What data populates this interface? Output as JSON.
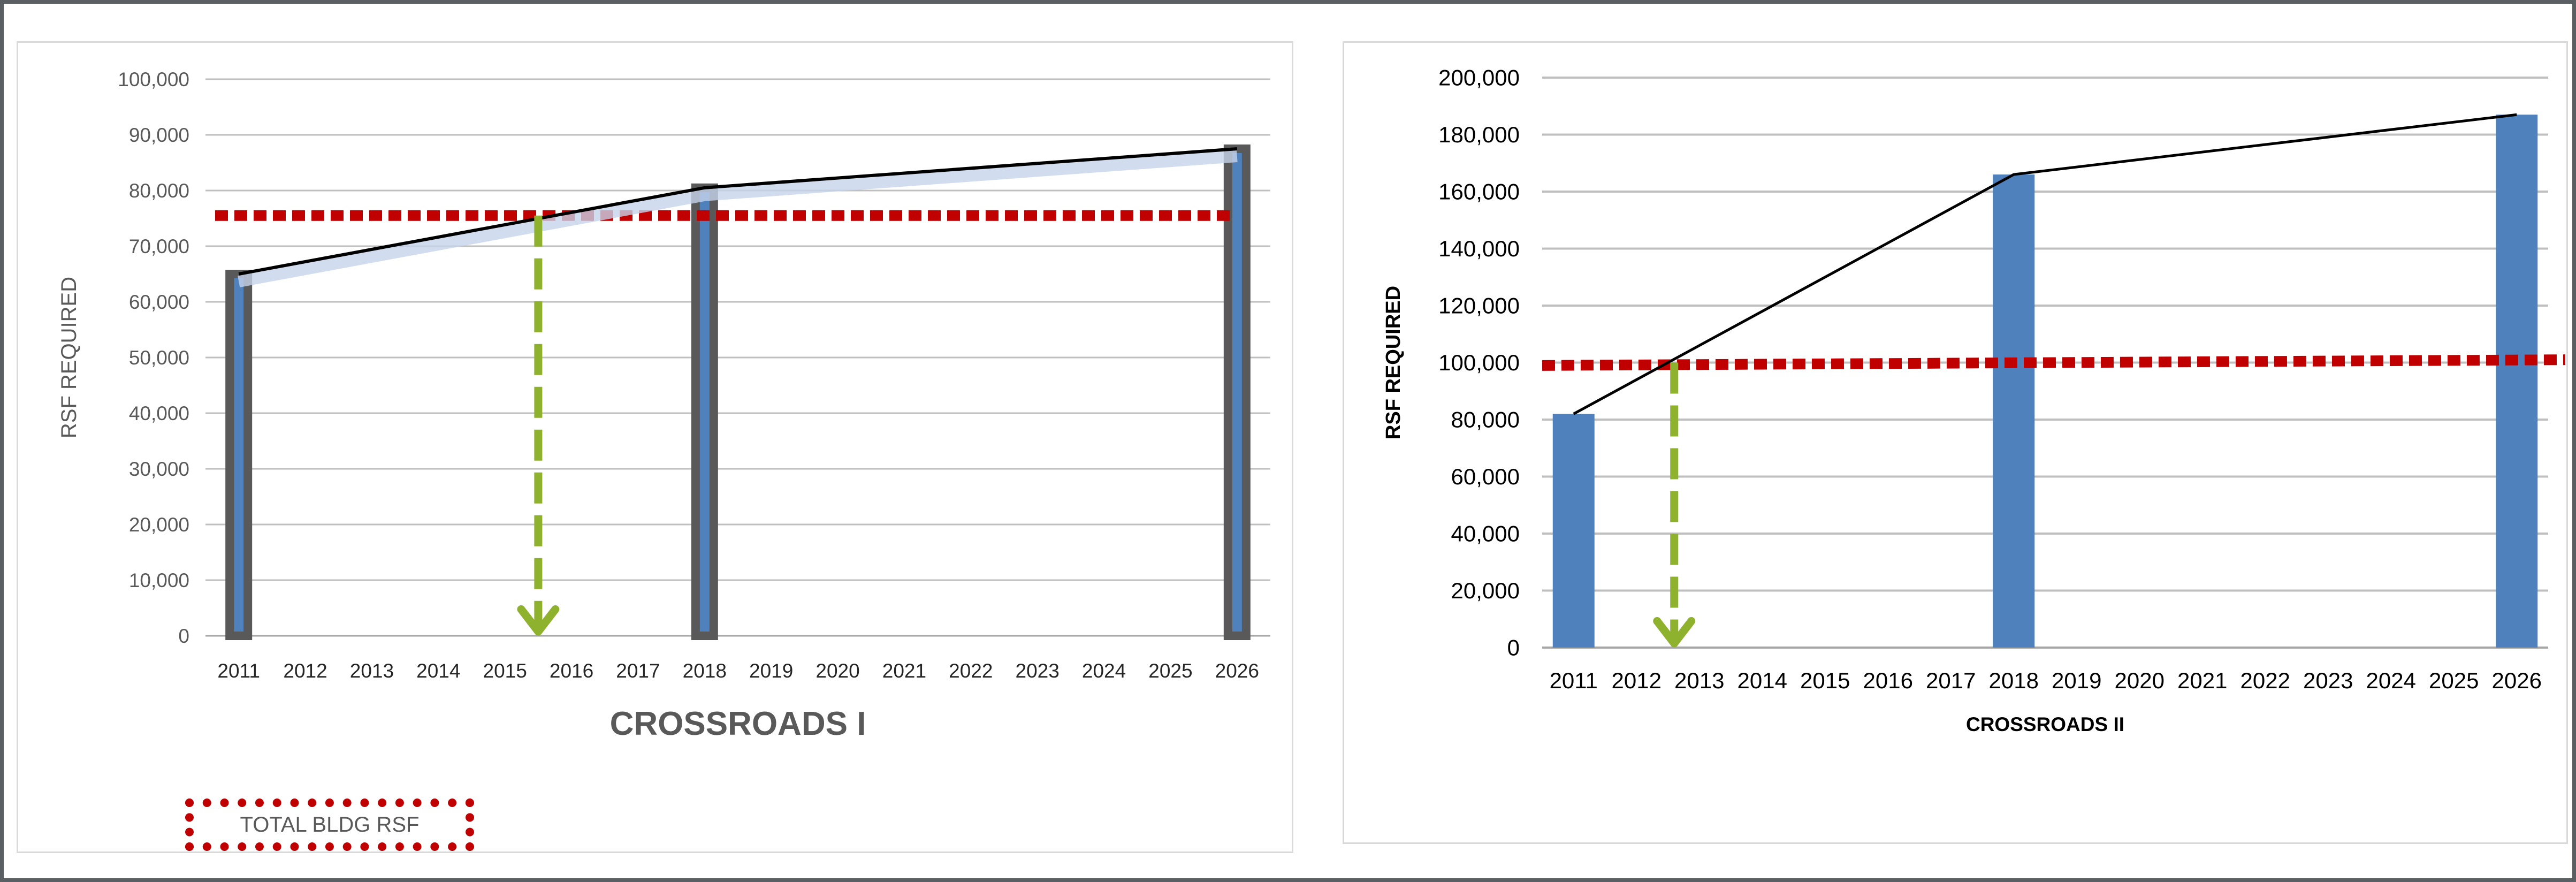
{
  "colors": {
    "bar_fill": "#4f81bd",
    "bar_border_left": "#595959",
    "trend_line": "#000000",
    "threshold_line": "#c00000",
    "arrow": "#8fb22e",
    "gridline": "#bfbfbf"
  },
  "chart_data": [
    {
      "type": "bar",
      "title": "CROSSROADS I",
      "xlabel": "",
      "ylabel": "RSF REQUIRED",
      "ylim": [
        0,
        100000
      ],
      "y_ticks": [
        "0",
        "10,000",
        "20,000",
        "30,000",
        "40,000",
        "50,000",
        "60,000",
        "70,000",
        "80,000",
        "90,000",
        "100,000"
      ],
      "categories": [
        "2011",
        "2012",
        "2013",
        "2014",
        "2015",
        "2016",
        "2017",
        "2018",
        "2019",
        "2020",
        "2021",
        "2022",
        "2023",
        "2024",
        "2025",
        "2026"
      ],
      "series": [
        {
          "values": [
            65000,
            null,
            null,
            null,
            null,
            null,
            null,
            80500,
            null,
            null,
            null,
            null,
            null,
            null,
            null,
            87500
          ]
        }
      ],
      "trend_line": {
        "x": [
          "2011",
          "2018",
          "2026"
        ],
        "y": [
          65000,
          80500,
          87500
        ]
      },
      "threshold_line": {
        "name": "TOTAL BLDG RSF",
        "y": 75500
      },
      "arrow_position": "2015.5",
      "grid": true,
      "legend": {
        "position": "bottom-left",
        "entries": [
          "TOTAL BLDG RSF"
        ]
      }
    },
    {
      "type": "bar",
      "title": "CROSSROADS II",
      "xlabel": "",
      "ylabel": "RSF REQUIRED",
      "ylim": [
        0,
        200000
      ],
      "y_ticks": [
        "0",
        "20,000",
        "40,000",
        "60,000",
        "80,000",
        "100,000",
        "120,000",
        "140,000",
        "160,000",
        "180,000",
        "200,000"
      ],
      "categories": [
        "2011",
        "2012",
        "2013",
        "2014",
        "2015",
        "2016",
        "2017",
        "2018",
        "2019",
        "2020",
        "2021",
        "2022",
        "2023",
        "2024",
        "2025",
        "2026"
      ],
      "series": [
        {
          "values": [
            82000,
            null,
            null,
            null,
            null,
            null,
            null,
            166000,
            null,
            null,
            null,
            null,
            null,
            null,
            null,
            187000
          ]
        }
      ],
      "trend_line": {
        "x": [
          "2011",
          "2018",
          "2026"
        ],
        "y": [
          82000,
          166000,
          187000
        ]
      },
      "threshold_line": {
        "y_start": 99000,
        "y_end": 101000
      },
      "arrow_position": "2012.6",
      "grid": true
    }
  ]
}
